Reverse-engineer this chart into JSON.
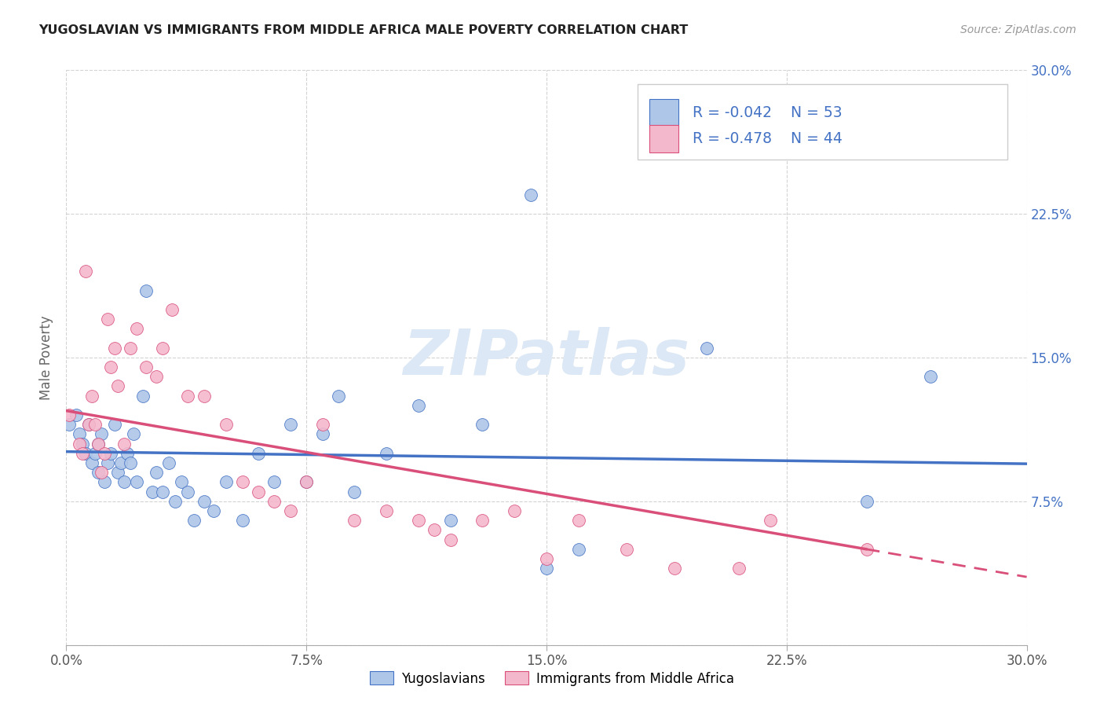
{
  "title": "YUGOSLAVIAN VS IMMIGRANTS FROM MIDDLE AFRICA MALE POVERTY CORRELATION CHART",
  "source": "Source: ZipAtlas.com",
  "ylabel": "Male Poverty",
  "x_min": 0.0,
  "x_max": 0.3,
  "y_min": 0.0,
  "y_max": 0.3,
  "x_ticks": [
    0.0,
    0.075,
    0.15,
    0.225,
    0.3
  ],
  "x_tick_labels": [
    "0.0%",
    "7.5%",
    "15.0%",
    "22.5%",
    "30.0%"
  ],
  "y_ticks": [
    0.0,
    0.075,
    0.15,
    0.225,
    0.3
  ],
  "y_tick_labels_right": [
    "",
    "7.5%",
    "15.0%",
    "22.5%",
    "30.0%"
  ],
  "blue_color": "#aec6e8",
  "blue_line_color": "#4472c4",
  "pink_color": "#f4b8cc",
  "pink_line_color": "#d94f7a",
  "watermark": "ZIPatlas",
  "legend_label1": "Yugoslavians",
  "legend_label2": "Immigrants from Middle Africa",
  "blue_R": -0.042,
  "blue_N": 53,
  "pink_R": -0.478,
  "pink_N": 44,
  "blue_x": [
    0.001,
    0.003,
    0.004,
    0.005,
    0.006,
    0.007,
    0.008,
    0.009,
    0.01,
    0.01,
    0.011,
    0.012,
    0.013,
    0.014,
    0.015,
    0.016,
    0.017,
    0.018,
    0.019,
    0.02,
    0.021,
    0.022,
    0.024,
    0.025,
    0.027,
    0.028,
    0.03,
    0.032,
    0.034,
    0.036,
    0.038,
    0.04,
    0.043,
    0.046,
    0.05,
    0.055,
    0.06,
    0.065,
    0.07,
    0.075,
    0.08,
    0.085,
    0.09,
    0.1,
    0.11,
    0.12,
    0.13,
    0.145,
    0.15,
    0.16,
    0.2,
    0.25,
    0.27
  ],
  "blue_y": [
    0.115,
    0.12,
    0.11,
    0.105,
    0.1,
    0.115,
    0.095,
    0.1,
    0.105,
    0.09,
    0.11,
    0.085,
    0.095,
    0.1,
    0.115,
    0.09,
    0.095,
    0.085,
    0.1,
    0.095,
    0.11,
    0.085,
    0.13,
    0.185,
    0.08,
    0.09,
    0.08,
    0.095,
    0.075,
    0.085,
    0.08,
    0.065,
    0.075,
    0.07,
    0.085,
    0.065,
    0.1,
    0.085,
    0.115,
    0.085,
    0.11,
    0.13,
    0.08,
    0.1,
    0.125,
    0.065,
    0.115,
    0.235,
    0.04,
    0.05,
    0.155,
    0.075,
    0.14
  ],
  "pink_x": [
    0.001,
    0.004,
    0.005,
    0.006,
    0.007,
    0.008,
    0.009,
    0.01,
    0.011,
    0.012,
    0.013,
    0.014,
    0.015,
    0.016,
    0.018,
    0.02,
    0.022,
    0.025,
    0.028,
    0.03,
    0.033,
    0.038,
    0.043,
    0.05,
    0.055,
    0.06,
    0.065,
    0.07,
    0.075,
    0.08,
    0.09,
    0.1,
    0.11,
    0.115,
    0.12,
    0.13,
    0.14,
    0.15,
    0.16,
    0.175,
    0.19,
    0.21,
    0.22,
    0.25
  ],
  "pink_y": [
    0.12,
    0.105,
    0.1,
    0.195,
    0.115,
    0.13,
    0.115,
    0.105,
    0.09,
    0.1,
    0.17,
    0.145,
    0.155,
    0.135,
    0.105,
    0.155,
    0.165,
    0.145,
    0.14,
    0.155,
    0.175,
    0.13,
    0.13,
    0.115,
    0.085,
    0.08,
    0.075,
    0.07,
    0.085,
    0.115,
    0.065,
    0.07,
    0.065,
    0.06,
    0.055,
    0.065,
    0.07,
    0.045,
    0.065,
    0.05,
    0.04,
    0.04,
    0.065,
    0.05
  ],
  "background_color": "#ffffff",
  "grid_color": "#c8c8c8"
}
